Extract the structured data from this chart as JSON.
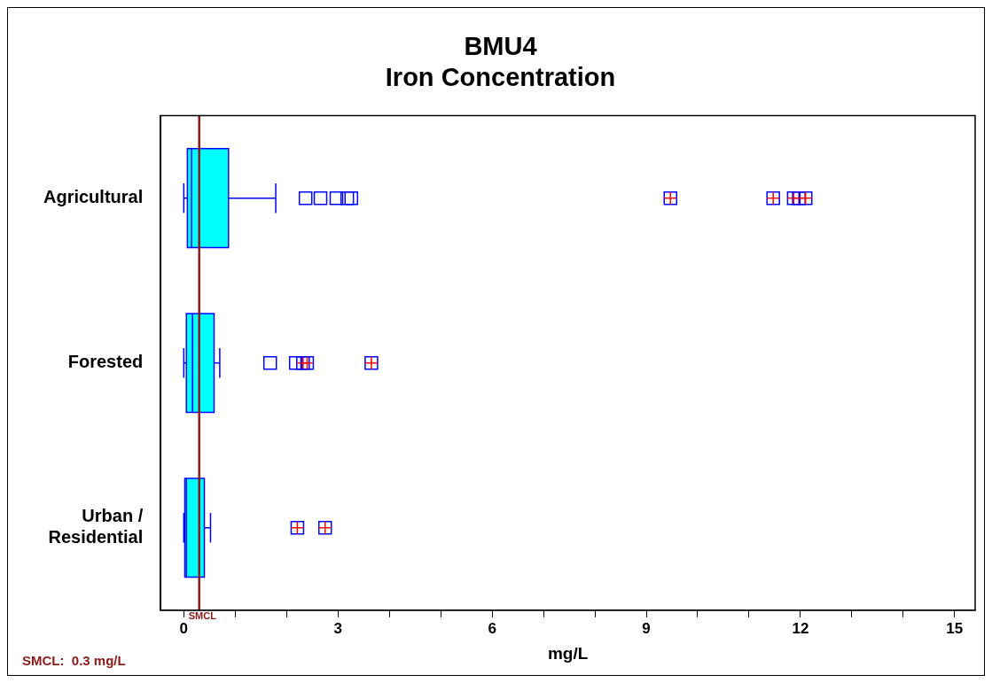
{
  "chart_data": {
    "type": "box",
    "orientation": "horizontal",
    "title": "BMU4\nIron Concentration",
    "xlabel": "mg/L",
    "categories": [
      "Agricultural",
      "Forested",
      "Urban / Residential"
    ],
    "series": [
      {
        "color": "#00ffff",
        "boxes": [
          {
            "low": 0.0,
            "q1": 0.07,
            "median": 0.15,
            "q3": 0.87,
            "high": 1.79,
            "outliers": [
              2.37,
              2.66,
              2.97,
              3.18,
              3.26,
              9.47,
              11.47,
              11.87,
              11.97,
              12.1
            ]
          },
          {
            "low": 0.0,
            "q1": 0.05,
            "median": 0.17,
            "q3": 0.59,
            "high": 0.7,
            "outliers": [
              1.68,
              2.18,
              2.32,
              2.4,
              3.65
            ]
          },
          {
            "low": 0.0,
            "q1": 0.02,
            "median": 0.05,
            "q3": 0.4,
            "high": 0.52,
            "outliers": [
              2.21,
              2.75
            ]
          }
        ]
      }
    ],
    "xlim": [
      -0.45,
      15.4
    ],
    "xticks": [
      0,
      {
        "value": 1,
        "label": null
      },
      {
        "value": 2,
        "label": null
      },
      3,
      {
        "value": 4,
        "label": null
      },
      {
        "value": 5,
        "label": null
      },
      6,
      {
        "value": 7,
        "label": null
      },
      {
        "value": 8,
        "label": null
      },
      9,
      {
        "value": 10,
        "label": null
      },
      {
        "value": 11,
        "label": null
      },
      12,
      {
        "value": 13,
        "label": null
      },
      {
        "value": 14,
        "label": null
      },
      15
    ],
    "ref_lines": [
      {
        "axis": "x",
        "value": 0.3,
        "label": "SMCL",
        "color": "#8b1a1a"
      }
    ],
    "annotations": [
      "SMCL:  0.3 mg/L"
    ],
    "grid": false,
    "legend": false,
    "marker": "square"
  }
}
